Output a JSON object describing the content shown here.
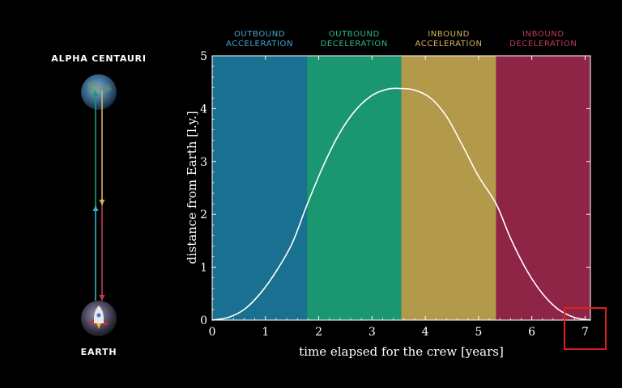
{
  "chart_data": {
    "type": "line",
    "xlabel": "time elapsed for the crew [years]",
    "ylabel": "distance from Earth [l.y.]",
    "xlim": [
      0,
      7.1
    ],
    "ylim": [
      0,
      5
    ],
    "xticks": [
      "0",
      "1",
      "2",
      "3",
      "4",
      "5",
      "6",
      "7"
    ],
    "yticks": [
      "0",
      "1",
      "2",
      "3",
      "4",
      "5"
    ],
    "grid": false,
    "phases": [
      {
        "label_top": "OUTBOUND",
        "label_bottom": "ACCELERATION",
        "start": 0,
        "end": 1.78,
        "color": "#1a7090"
      },
      {
        "label_top": "OUTBOUND",
        "label_bottom": "DECELERATION",
        "start": 1.78,
        "end": 3.55,
        "color": "#1a9670"
      },
      {
        "label_top": "INBOUND",
        "label_bottom": "ACCELERATION",
        "start": 3.55,
        "end": 5.33,
        "color": "#b39a4a"
      },
      {
        "label_top": "INBOUND",
        "label_bottom": "DECELERATION",
        "start": 5.33,
        "end": 7.1,
        "color": "#8e2546"
      }
    ],
    "phase_text_colors": [
      "#3fa7cf",
      "#2fb88a",
      "#d9b45e",
      "#c23a5a"
    ],
    "series": [
      {
        "color": "#ffffff",
        "x": [
          0,
          0.3,
          0.6,
          0.9,
          1.2,
          1.5,
          1.78,
          2.1,
          2.4,
          2.7,
          3.0,
          3.3,
          3.55,
          3.8,
          4.1,
          4.4,
          4.7,
          5.0,
          5.33,
          5.6,
          5.9,
          6.2,
          6.5,
          6.8,
          7.1
        ],
        "y": [
          0,
          0.05,
          0.2,
          0.5,
          0.92,
          1.45,
          2.18,
          2.95,
          3.55,
          3.98,
          4.25,
          4.37,
          4.38,
          4.35,
          4.2,
          3.85,
          3.3,
          2.72,
          2.2,
          1.55,
          0.95,
          0.5,
          0.2,
          0.05,
          0
        ]
      }
    ]
  },
  "diagram": {
    "destination_label": "ALPHA CENTAURI",
    "origin_label": "EARTH",
    "arrow_colors": [
      "#3fa7cf",
      "#1a9670",
      "#d9b45e",
      "#c23a5a"
    ]
  },
  "highlight": {
    "color": "#e02020"
  }
}
